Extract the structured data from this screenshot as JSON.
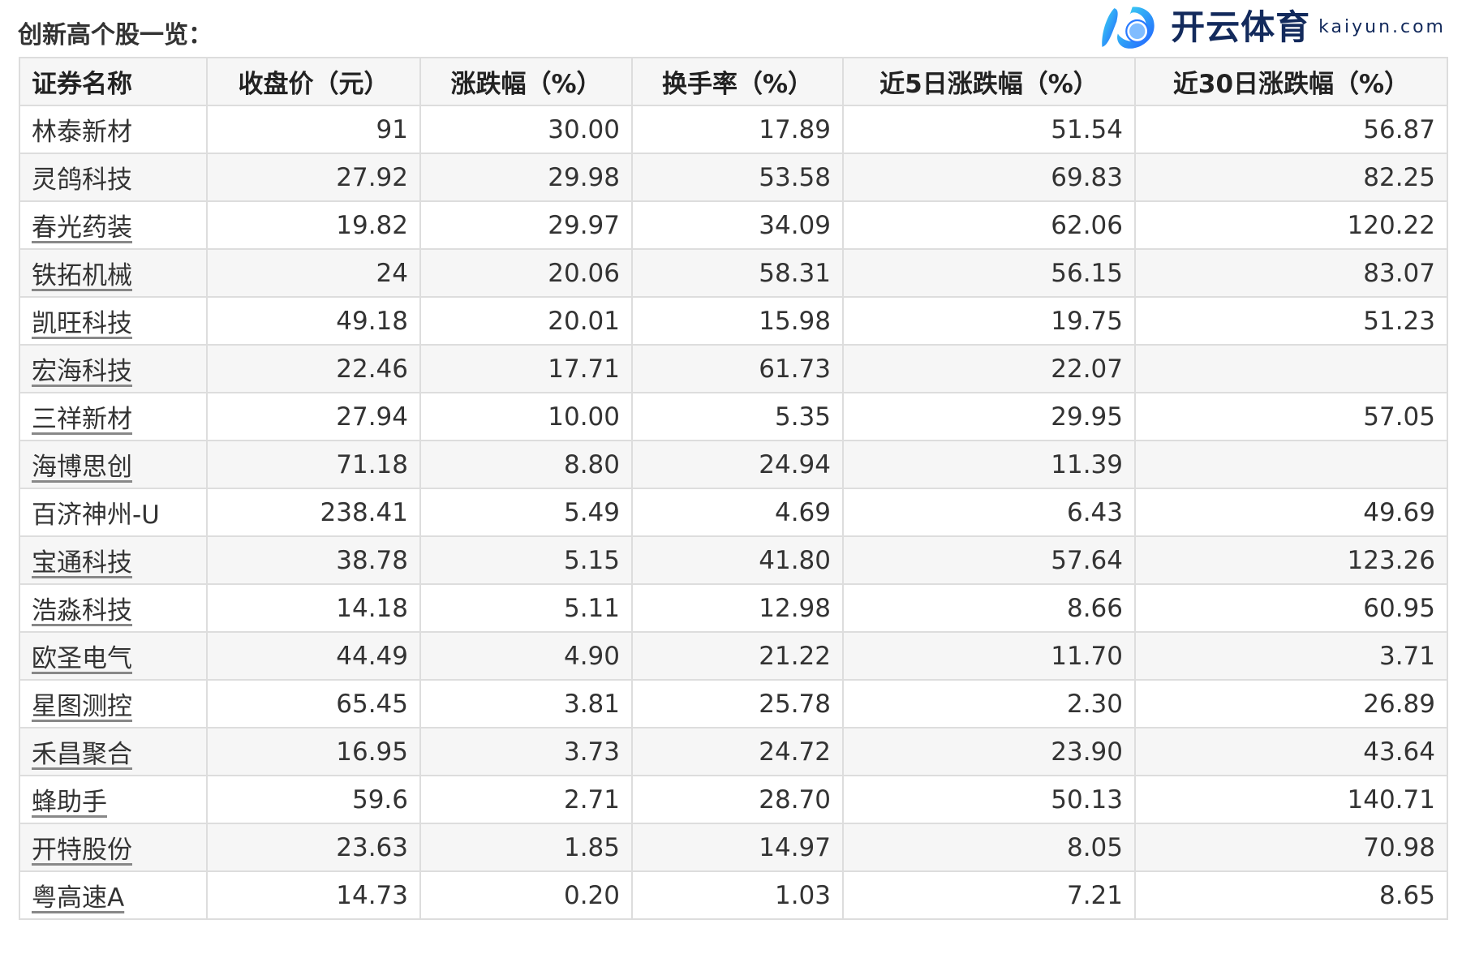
{
  "title": "创新高个股一览：",
  "table": {
    "headers": [
      "证券名称",
      "收盘价（元）",
      "涨跌幅（%）",
      "换手率（%）",
      "近5日涨跌幅（%）",
      "近30日涨跌幅（%）"
    ],
    "rows": [
      {
        "name": "林泰新材",
        "linked": false,
        "cells": [
          "91",
          "30.00",
          "17.89",
          "51.54",
          "56.87"
        ]
      },
      {
        "name": "灵鸽科技",
        "linked": false,
        "cells": [
          "27.92",
          "29.98",
          "53.58",
          "69.83",
          "82.25"
        ]
      },
      {
        "name": "春光药装",
        "linked": true,
        "cells": [
          "19.82",
          "29.97",
          "34.09",
          "62.06",
          "120.22"
        ]
      },
      {
        "name": "铁拓机械",
        "linked": true,
        "cells": [
          "24",
          "20.06",
          "58.31",
          "56.15",
          "83.07"
        ]
      },
      {
        "name": "凯旺科技",
        "linked": true,
        "cells": [
          "49.18",
          "20.01",
          "15.98",
          "19.75",
          "51.23"
        ]
      },
      {
        "name": "宏海科技",
        "linked": true,
        "cells": [
          "22.46",
          "17.71",
          "61.73",
          "22.07",
          ""
        ]
      },
      {
        "name": "三祥新材",
        "linked": true,
        "cells": [
          "27.94",
          "10.00",
          "5.35",
          "29.95",
          "57.05"
        ]
      },
      {
        "name": "海博思创",
        "linked": true,
        "cells": [
          "71.18",
          "8.80",
          "24.94",
          "11.39",
          ""
        ]
      },
      {
        "name": "百济神州-U",
        "linked": false,
        "cells": [
          "238.41",
          "5.49",
          "4.69",
          "6.43",
          "49.69"
        ]
      },
      {
        "name": "宝通科技",
        "linked": true,
        "cells": [
          "38.78",
          "5.15",
          "41.80",
          "57.64",
          "123.26"
        ]
      },
      {
        "name": "浩淼科技",
        "linked": true,
        "cells": [
          "14.18",
          "5.11",
          "12.98",
          "8.66",
          "60.95"
        ]
      },
      {
        "name": "欧圣电气",
        "linked": true,
        "cells": [
          "44.49",
          "4.90",
          "21.22",
          "11.70",
          "3.71"
        ]
      },
      {
        "name": "星图测控",
        "linked": true,
        "cells": [
          "65.45",
          "3.81",
          "25.78",
          "2.30",
          "26.89"
        ]
      },
      {
        "name": "禾昌聚合",
        "linked": true,
        "cells": [
          "16.95",
          "3.73",
          "24.72",
          "23.90",
          "43.64"
        ]
      },
      {
        "name": "蜂助手",
        "linked": true,
        "cells": [
          "59.6",
          "2.71",
          "28.70",
          "50.13",
          "140.71"
        ]
      },
      {
        "name": "开特股份",
        "linked": true,
        "cells": [
          "23.63",
          "1.85",
          "14.97",
          "8.05",
          "70.98"
        ]
      },
      {
        "name": "粤高速A",
        "linked": true,
        "cells": [
          "14.73",
          "0.20",
          "1.03",
          "7.21",
          "8.65"
        ]
      }
    ]
  },
  "watermark": {
    "cn": "开云体育",
    "en": "kaiyun.com",
    "colors": {
      "logo": "#1e90ff",
      "text": "#132a5c"
    }
  }
}
